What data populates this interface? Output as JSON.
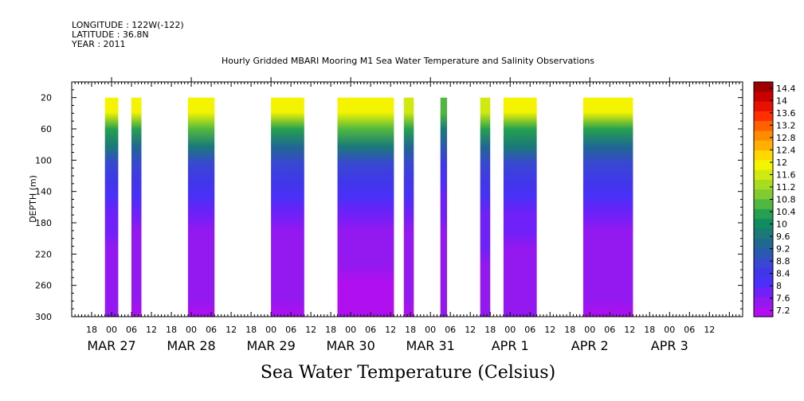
{
  "header": {
    "longitude": "LONGITUDE : 122W(-122)",
    "latitude": "LATITUDE : 36.8N",
    "year": "YEAR : 2011",
    "title": "Hourly Gridded MBARI Mooring M1 Sea Water Temperature and Salinity Observations"
  },
  "footer": {
    "variable_title": "Sea Water Temperature (Celsius)"
  },
  "chart_data": {
    "type": "heatmap",
    "title": "Hourly Gridded MBARI Mooring M1 Sea Water Temperature and Salinity Observations",
    "xlabel": "",
    "ylabel": "DEPTH (m)",
    "x_start": "MAR 26 12:00",
    "x_end": "APR 3 22:00",
    "xlim_hours": [
      0,
      202
    ],
    "ylim": [
      300,
      0
    ],
    "yticks": [
      20,
      60,
      100,
      140,
      180,
      220,
      260,
      300
    ],
    "hour_labels": [
      "18",
      "00",
      "06",
      "12",
      "18",
      "00",
      "06",
      "12",
      "18",
      "00",
      "06",
      "12",
      "18",
      "00",
      "06",
      "12",
      "18",
      "00",
      "06",
      "12",
      "18",
      "00",
      "06",
      "12",
      "18",
      "00",
      "06",
      "12",
      "18",
      "00",
      "06",
      "12"
    ],
    "date_labels": [
      "MAR 27",
      "MAR 28",
      "MAR 29",
      "MAR 30",
      "MAR 31",
      "APR  1",
      "APR  2",
      "APR  3"
    ],
    "colorbar": {
      "labels": [
        "14.4",
        "14",
        "13.6",
        "13.2",
        "12.8",
        "12.4",
        "12",
        "11.6",
        "11.2",
        "10.8",
        "10.4",
        "10",
        "9.6",
        "9.2",
        "8.8",
        "8.4",
        "8",
        "7.6",
        "7.2"
      ],
      "colors": [
        "#a00000",
        "#c80000",
        "#e81000",
        "#ff3000",
        "#ff6000",
        "#ff8c00",
        "#ffb000",
        "#ffd800",
        "#f4f400",
        "#d0ea10",
        "#a8dc20",
        "#80cc30",
        "#50b840",
        "#24a050",
        "#108c60",
        "#1a7a78",
        "#206890",
        "#2a5ab0",
        "#3848d0",
        "#4038e8",
        "#4a30f8",
        "#7020f8",
        "#9418f0",
        "#b010f0"
      ]
    },
    "data_blocks": [
      {
        "start": "MAR 26 22:00",
        "end": "MAR 27 02:00",
        "surface_temp": 11.8,
        "deep_temp": 7.4
      },
      {
        "start": "MAR 27 06:00",
        "end": "MAR 27 09:00",
        "surface_temp": 11.8,
        "deep_temp": 7.3
      },
      {
        "start": "MAR 27 23:00",
        "end": "MAR 28 07:00",
        "surface_temp": 11.9,
        "deep_temp": 7.3
      },
      {
        "start": "MAR 29 00:00",
        "end": "MAR 29 10:00",
        "surface_temp": 11.8,
        "deep_temp": 7.3
      },
      {
        "start": "MAR 29 20:00",
        "end": "MAR 30 13:00",
        "surface_temp": 12.0,
        "deep_temp": 7.2
      },
      {
        "start": "MAR 30 16:00",
        "end": "MAR 30 19:00",
        "surface_temp": 11.7,
        "deep_temp": 7.3
      },
      {
        "start": "MAR 31 03:00",
        "end": "MAR 31 05:00",
        "surface_temp": 10.5,
        "deep_temp": 7.4
      },
      {
        "start": "MAR 31 15:00",
        "end": "MAR 31 18:00",
        "surface_temp": 11.6,
        "deep_temp": 7.5
      },
      {
        "start": "MAR 31 22:00",
        "end": "APR 1 08:00",
        "surface_temp": 11.8,
        "deep_temp": 7.4
      },
      {
        "start": "APR 1 22:00",
        "end": "APR 2 13:00",
        "surface_temp": 11.8,
        "deep_temp": 7.3
      }
    ]
  }
}
